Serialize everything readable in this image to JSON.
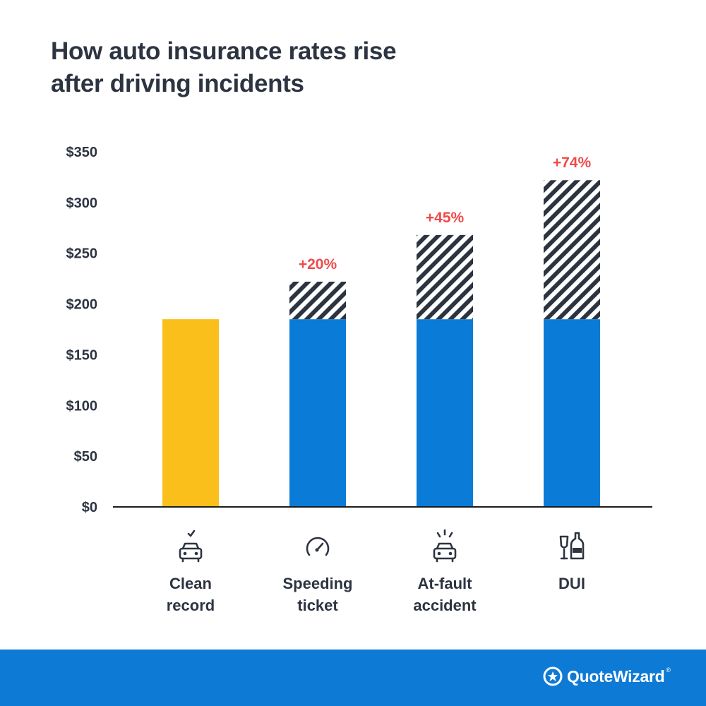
{
  "title": {
    "line1": "How auto insurance rates rise",
    "line2": "after driving incidents"
  },
  "chart_data": {
    "type": "bar",
    "stacked": true,
    "categories": [
      {
        "line1": "Clean",
        "line2": "record",
        "icon": "car-check-icon"
      },
      {
        "line1": "Speeding",
        "line2": "ticket",
        "icon": "speedometer-icon"
      },
      {
        "line1": "At-fault",
        "line2": "accident",
        "icon": "car-crash-icon"
      },
      {
        "line1": "DUI",
        "line2": "",
        "icon": "bottle-glass-icon"
      }
    ],
    "series": [
      {
        "values": [
          185,
          185,
          185,
          185
        ],
        "colors": [
          "#fbbf1b",
          "#0a7bd6",
          "#0a7bd6",
          "#0a7bd6"
        ]
      },
      {
        "values": [
          0,
          37,
          83,
          137
        ],
        "pattern": "hatched",
        "color": "#2d3441"
      }
    ],
    "increase_labels": [
      "",
      "+20%",
      "+45%",
      "+74%"
    ],
    "increase_label_color": "#ef4a4a",
    "y_ticks": [
      "$0",
      "$50",
      "$100",
      "$150",
      "$200",
      "$250",
      "$300",
      "$350"
    ],
    "ylim": [
      0,
      350
    ],
    "grid": false
  },
  "footer": {
    "brand": "QuoteWizard",
    "brand_mark": "®",
    "color": "#0d7ad6"
  }
}
